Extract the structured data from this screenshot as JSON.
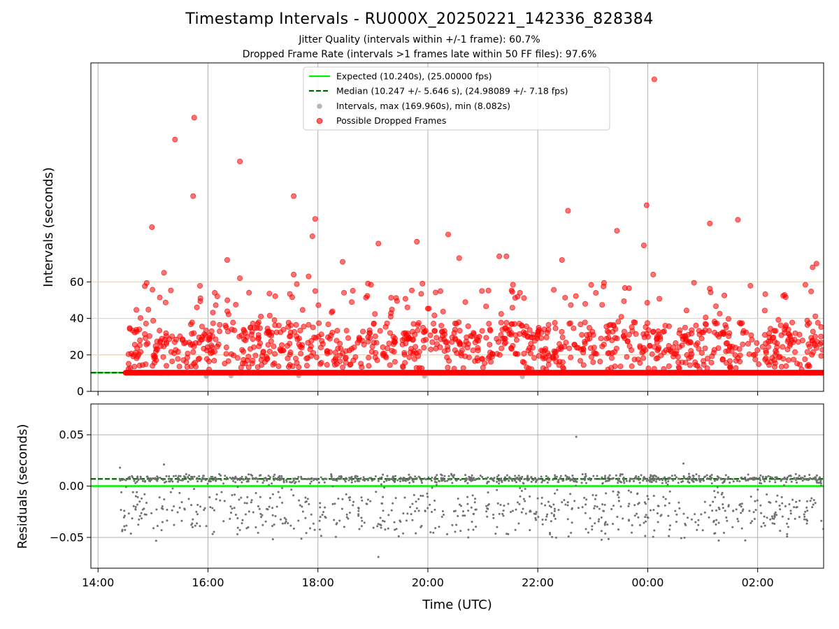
{
  "figure": {
    "title": "Timestamp Intervals - RU000X_20250221_142336_828384",
    "subtitle_1": "Jitter Quality (intervals within +/-1 frame): 60.7%",
    "subtitle_2": "Dropped Frame Rate (intervals >1 frames late within 50 FF files): 97.6%"
  },
  "colors": {
    "expected": "#00ee00",
    "median": "#006400",
    "intervals": "#a0a0a0",
    "dropped": "#ff0000",
    "threshold_lines": "#ffd27f",
    "residuals": "#707070",
    "grid": "#b0b0b0"
  },
  "chart_data": [
    {
      "type": "scatter",
      "panel": "top",
      "xlabel": "",
      "ylabel": "Intervals (seconds)",
      "x_unit": "hours (UTC, continuing past midnight)",
      "xlim": [
        13.87,
        27.2
      ],
      "ylim": [
        0,
        180
      ],
      "x_ticks": [
        14,
        16,
        18,
        20,
        22,
        24,
        26
      ],
      "y_ticks": [
        0,
        20,
        40,
        60
      ],
      "y_tick_labels": [
        "0",
        "20",
        "40",
        "60"
      ],
      "grid": "vertical",
      "horizontal_lines": [
        20,
        40,
        60
      ],
      "legend_position": "top-center",
      "legend": [
        {
          "key": "expected",
          "label": "Expected (10.240s), (25.00000 fps)",
          "style": "solid-line"
        },
        {
          "key": "median",
          "label": "Median (10.247 +/- 5.646 s), (24.98089 +/- 7.18 fps)",
          "style": "dashed-line"
        },
        {
          "key": "intervals",
          "label": "Intervals, max (169.960s), min (8.082s)",
          "style": "marker"
        },
        {
          "key": "dropped",
          "label": "Possible Dropped Frames",
          "style": "marker"
        }
      ],
      "series": [
        {
          "name": "Expected (10.240s), (25.00000 fps)",
          "kind": "hline",
          "y": 10.24
        },
        {
          "name": "Median (10.247 +/- 5.646 s), (24.98089 +/- 7.18 fps)",
          "kind": "hline",
          "y": 10.247
        },
        {
          "name": "Intervals, max (169.960s), min (8.082s)",
          "kind": "scatter",
          "x_range": [
            14.4,
            27.2
          ],
          "baseline": 10.24,
          "max": 169.96,
          "min": 8.082
        },
        {
          "name": "Possible Dropped Frames",
          "kind": "scatter",
          "x_range": [
            14.5,
            27.2
          ],
          "baseline": 10.24,
          "points": [
            [
              14.98,
              90.0
            ],
            [
              15.4,
              138.0
            ],
            [
              15.75,
              150.0
            ],
            [
              15.73,
              107.0
            ],
            [
              16.58,
              126.0
            ],
            [
              17.56,
              107.0
            ],
            [
              17.95,
              94.5
            ],
            [
              17.9,
              85.0
            ],
            [
              18.45,
              71.0
            ],
            [
              19.1,
              81.0
            ],
            [
              19.8,
              82.0
            ],
            [
              20.37,
              86.0
            ],
            [
              20.57,
              73.0
            ],
            [
              21.3,
              74.0
            ],
            [
              21.43,
              74.0
            ],
            [
              22.55,
              99.0
            ],
            [
              23.44,
              88.0
            ],
            [
              23.98,
              102.0
            ],
            [
              23.93,
              80.0
            ],
            [
              24.12,
              171.0
            ],
            [
              24.1,
              64.0
            ],
            [
              25.13,
              92.0
            ],
            [
              25.64,
              94.0
            ],
            [
              27.07,
              70.0
            ],
            [
              27.0,
              68.0
            ],
            [
              15.2,
              65.0
            ],
            [
              16.35,
              72.0
            ],
            [
              16.58,
              62.0
            ],
            [
              17.56,
              64.0
            ],
            [
              17.83,
              63.0
            ],
            [
              22.44,
              72.0
            ]
          ]
        }
      ]
    },
    {
      "type": "scatter",
      "panel": "bottom",
      "xlabel": "Time (UTC)",
      "ylabel": "Residuals (seconds)",
      "xlim": [
        13.87,
        27.2
      ],
      "ylim": [
        -0.08,
        0.08
      ],
      "x_ticks": [
        14,
        16,
        18,
        20,
        22,
        24,
        26
      ],
      "x_tick_labels": [
        "14:00",
        "16:00",
        "18:00",
        "20:00",
        "22:00",
        "00:00",
        "02:00"
      ],
      "y_ticks": [
        0.05,
        0.0,
        -0.05
      ],
      "y_tick_labels": [
        "0.05",
        "0.00",
        "−0.05"
      ],
      "grid": "both",
      "series": [
        {
          "name": "expected",
          "kind": "hline",
          "y": 0.0
        },
        {
          "name": "median",
          "kind": "hline",
          "y": 0.007
        },
        {
          "name": "residuals",
          "kind": "scatter",
          "x_range": [
            14.4,
            27.2
          ],
          "clusters": [
            {
              "center": 0.007,
              "spread": 0.005
            },
            {
              "center": -0.025,
              "spread": 0.03
            }
          ],
          "min": -0.069,
          "max": 0.048,
          "points": [
            [
              22.7,
              0.048
            ],
            [
              19.1,
              -0.069
            ],
            [
              14.4,
              0.018
            ],
            [
              15.2,
              0.021
            ],
            [
              24.65,
              0.022
            ]
          ]
        }
      ]
    }
  ]
}
